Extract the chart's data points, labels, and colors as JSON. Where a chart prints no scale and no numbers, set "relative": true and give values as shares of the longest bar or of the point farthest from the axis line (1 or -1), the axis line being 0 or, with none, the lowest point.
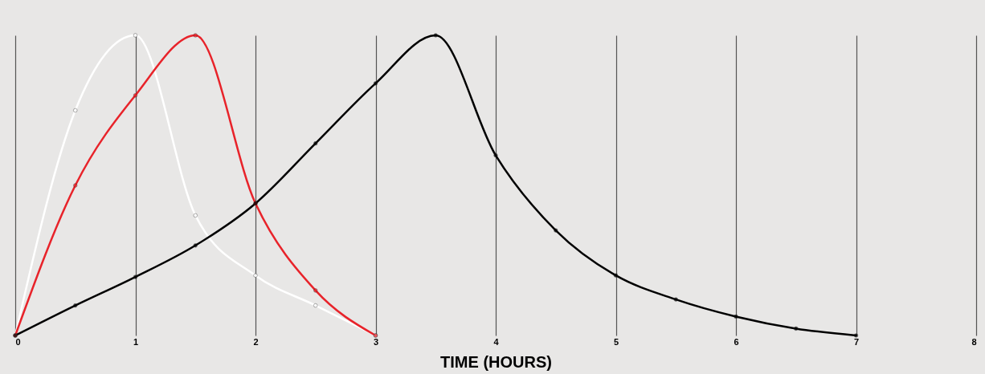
{
  "chart_data": {
    "type": "line",
    "relative": true,
    "xlabel": "TIME (HOURS)",
    "xlim": [
      0,
      8
    ],
    "xticks": [
      0,
      1,
      2,
      3,
      4,
      5,
      6,
      7,
      8
    ],
    "grid": "x",
    "marker": "circle",
    "line_style": "solid",
    "legend": false,
    "series": [
      {
        "color": "#ffffff",
        "x": [
          0,
          0.5,
          1,
          1.5,
          2,
          2.5,
          3
        ],
        "values": [
          0,
          0.75,
          1.0,
          0.4,
          0.2,
          0.1,
          0
        ]
      },
      {
        "color": "#e8232a",
        "x": [
          0,
          0.5,
          1,
          1.5,
          2,
          2.5,
          3
        ],
        "values": [
          0,
          0.5,
          0.8,
          1.0,
          0.44,
          0.15,
          0
        ]
      },
      {
        "color": "#000000",
        "x": [
          0,
          0.5,
          1,
          1.5,
          2,
          2.5,
          3,
          3.5,
          4,
          4.5,
          5,
          5.5,
          6,
          6.5,
          7
        ],
        "values": [
          0,
          0.1,
          0.195,
          0.3,
          0.44,
          0.64,
          0.84,
          1.0,
          0.6,
          0.35,
          0.2,
          0.12,
          0.063,
          0.023,
          0
        ]
      }
    ]
  }
}
